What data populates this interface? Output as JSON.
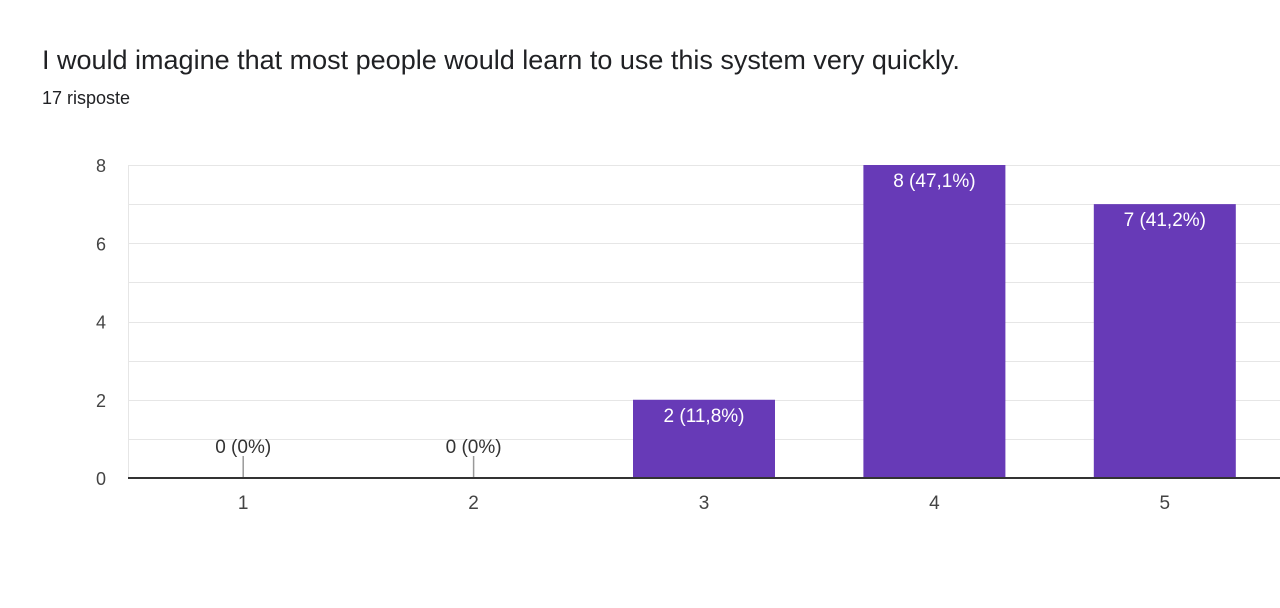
{
  "question": {
    "title": "I would imagine that most people would learn to use this system very quickly.",
    "response_count": "17 risposte"
  },
  "colors": {
    "bar": "#673ab7",
    "grid": "#e6e6e6",
    "axis": "#333333",
    "tick_text": "#444444",
    "label_inside": "#ffffff",
    "label_outside": "#333333"
  },
  "chart_data": {
    "type": "bar",
    "categories": [
      "1",
      "2",
      "3",
      "4",
      "5"
    ],
    "values": [
      0,
      0,
      2,
      8,
      7
    ],
    "data_labels": [
      "0 (0%)",
      "0 (0%)",
      "2 (11,8%)",
      "8 (47,1%)",
      "7 (41,2%)"
    ],
    "y_ticks": [
      "0",
      "2",
      "4",
      "6",
      "8"
    ],
    "ylim": [
      0,
      8
    ],
    "grid": true,
    "legend": "none"
  }
}
